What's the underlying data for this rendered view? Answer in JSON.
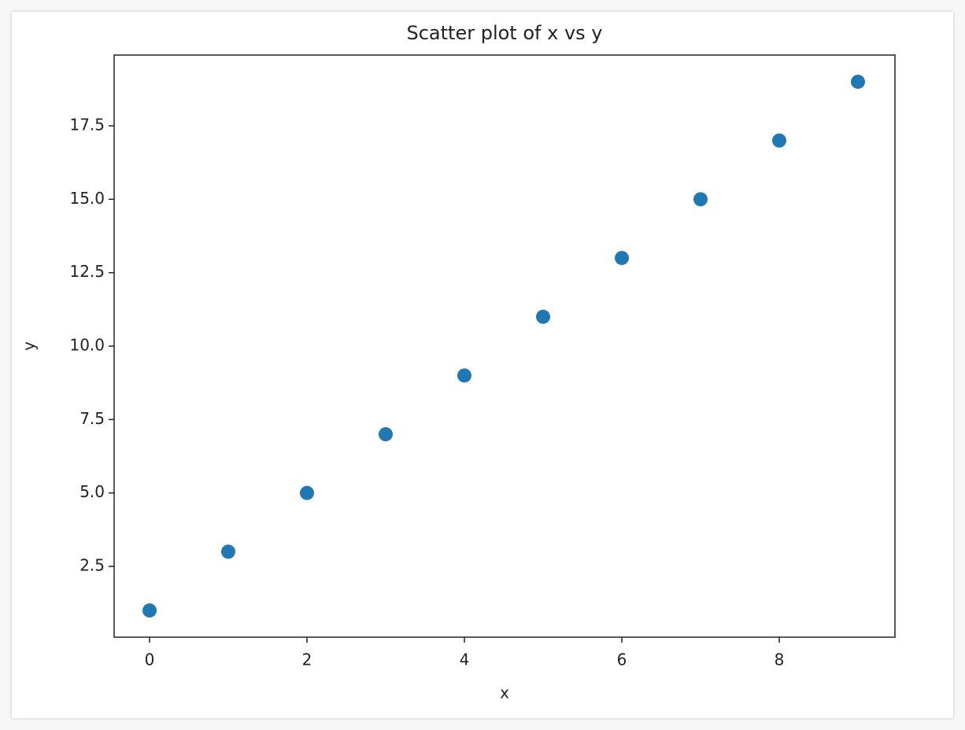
{
  "chart_data": {
    "type": "scatter",
    "title": "Scatter plot of x vs y",
    "x_label": "x",
    "y_label": "y",
    "x": [
      0,
      1,
      2,
      3,
      4,
      5,
      6,
      7,
      8,
      9
    ],
    "series": [
      {
        "name": null,
        "color": "#1f77b4",
        "values": [
          1,
          3,
          5,
          7,
          9,
          11,
          13,
          15,
          17,
          19
        ]
      }
    ],
    "xlim": [
      -0.45,
      9.47
    ],
    "xticks": [
      0,
      2,
      4,
      6,
      8
    ],
    "ylim": [
      0.09,
      19.91
    ],
    "yticks": [
      2.5,
      {
        "value": 5,
        "label": "5.0"
      },
      7.5,
      {
        "value": 10,
        "label": "10.0"
      },
      12.5,
      {
        "value": 15,
        "label": "15.0"
      },
      17.5
    ],
    "grid": false
  }
}
